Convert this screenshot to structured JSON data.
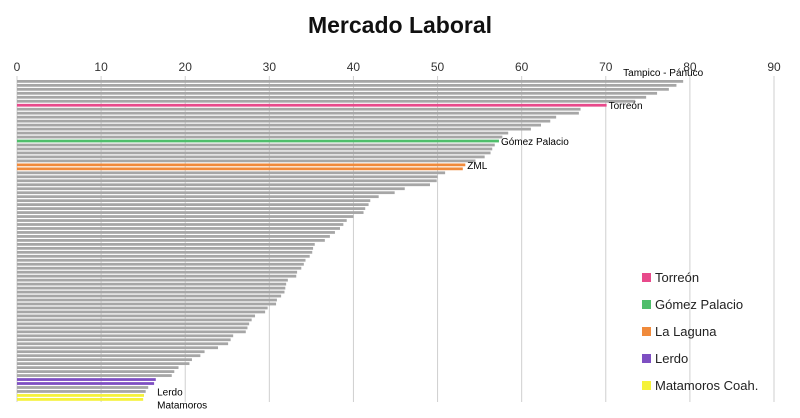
{
  "chart_data": {
    "type": "bar",
    "orientation": "horizontal",
    "title": "Mercado Laboral",
    "xlabel": "",
    "ylabel": "",
    "xlim": [
      0,
      90
    ],
    "xticks": [
      0,
      10,
      20,
      30,
      40,
      50,
      60,
      70,
      80,
      90
    ],
    "grid": true,
    "legend_position": "bottom-right",
    "default_color": "#a6a6a6",
    "values": [
      79.2,
      78.4,
      77.5,
      76.1,
      74.8,
      73.5,
      70.1,
      67.0,
      66.8,
      64.1,
      63.4,
      62.3,
      61.1,
      58.4,
      57.7,
      57.3,
      56.8,
      56.5,
      56.3,
      55.6,
      54.5,
      53.3,
      53.0,
      50.9,
      50.0,
      49.9,
      49.1,
      46.1,
      44.9,
      43.0,
      42.0,
      41.8,
      41.4,
      41.2,
      40.0,
      39.2,
      38.8,
      38.4,
      37.8,
      37.2,
      36.6,
      35.4,
      35.2,
      35.1,
      34.8,
      34.3,
      34.1,
      33.8,
      33.3,
      33.2,
      32.2,
      32.0,
      31.9,
      31.8,
      31.4,
      30.9,
      30.8,
      29.8,
      29.5,
      28.3,
      27.9,
      27.6,
      27.4,
      27.2,
      25.7,
      25.4,
      25.1,
      23.9,
      22.3,
      21.8,
      20.8,
      20.5,
      19.2,
      18.7,
      18.4,
      16.5,
      16.3,
      15.6,
      15.3,
      15.1,
      15.0
    ],
    "highlight_colors": [
      "#e84a8b",
      "#4fbe6b",
      "#f08a3b",
      "#7e4fc2",
      "#f5f23a"
    ],
    "highlights": [
      {
        "index": 6,
        "color_index": 0
      },
      {
        "index": 15,
        "color_index": 1
      },
      {
        "index": 21,
        "color_index": 2
      },
      {
        "index": 22,
        "color_index": 2
      },
      {
        "index": 75,
        "color_index": 3
      },
      {
        "index": 76,
        "color_index": 3
      },
      {
        "index": 79,
        "color_index": 4
      },
      {
        "index": 80,
        "color_index": 4
      }
    ],
    "annotations": [
      {
        "text": "Tampico - Pánuco",
        "bar_index": 0
      },
      {
        "text": "Torreón",
        "bar_index": 6
      },
      {
        "text": "Gómez Palacio",
        "bar_index": 15
      },
      {
        "text": "ZML",
        "bar_index": 21
      },
      {
        "text": "Lerdo",
        "bar_index": 76
      },
      {
        "text": "Matamoros",
        "bar_index": 80
      }
    ],
    "legend": [
      {
        "label": "Torreón",
        "color": "#e84a8b"
      },
      {
        "label": "Gómez Palacio",
        "color": "#4fbe6b"
      },
      {
        "label": "La Laguna",
        "color": "#f08a3b"
      },
      {
        "label": "Lerdo",
        "color": "#7e4fc2"
      },
      {
        "label": "Matamoros Coah.",
        "color": "#f5f23a"
      }
    ]
  }
}
